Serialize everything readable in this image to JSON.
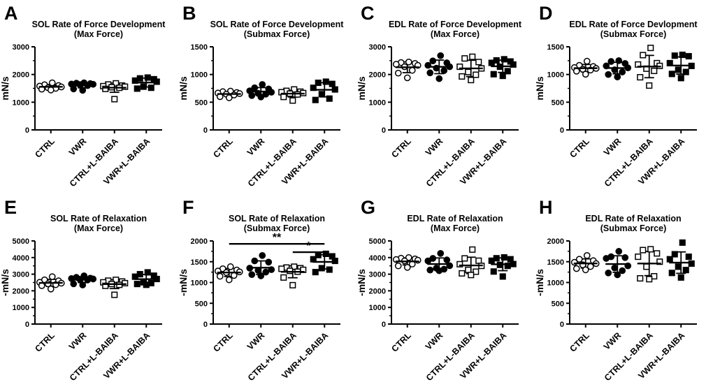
{
  "figure": {
    "background": "#ffffff",
    "foreground": "#000000",
    "categories": [
      "CTRL",
      "VWR",
      "CTRL+L-BAIBA",
      "VWR+L-BAIBA"
    ],
    "marker_key": {
      "CTRL": "circle-open",
      "VWR": "circle-filled",
      "CTRL+L-BAIBA": "square-open",
      "VWR+L-BAIBA": "square-filled"
    }
  },
  "chart_data": [
    {
      "type": "scatter",
      "panel": "A",
      "title": "SOL Rate of Force Development",
      "subtitle": "(Max Force)",
      "ylabel": "mN/s",
      "ylim": [
        0,
        3000
      ],
      "yticks": [
        0,
        1000,
        2000,
        3000
      ],
      "categories": [
        "CTRL",
        "VWR",
        "CTRL+L-BAIBA",
        "VWR+L-BAIBA"
      ],
      "error": "mean_sd",
      "grid": false,
      "legend": "none",
      "series": [
        {
          "name": "CTRL",
          "marker": "circle-open",
          "values": [
            1700,
            1630,
            1600,
            1580,
            1550,
            1520,
            1500,
            1470,
            1440
          ]
        },
        {
          "name": "VWR",
          "marker": "circle-filled",
          "values": [
            1700,
            1685,
            1670,
            1655,
            1645,
            1635,
            1600,
            1480,
            1430
          ]
        },
        {
          "name": "CTRL+L-BAIBA",
          "marker": "square-open",
          "values": [
            1680,
            1640,
            1600,
            1580,
            1560,
            1540,
            1520,
            1480,
            1110
          ]
        },
        {
          "name": "VWR+L-BAIBA",
          "marker": "square-filled",
          "values": [
            1890,
            1860,
            1830,
            1780,
            1740,
            1560,
            1520,
            1490
          ]
        }
      ],
      "significance": []
    },
    {
      "type": "scatter",
      "panel": "B",
      "title": "SOL Rate of Force Development",
      "subtitle": "(Submax Force)",
      "ylabel": "mN/s",
      "ylim": [
        0,
        1500
      ],
      "yticks": [
        0,
        500,
        1000,
        1500
      ],
      "categories": [
        "CTRL",
        "VWR",
        "CTRL+L-BAIBA",
        "VWR+L-BAIBA"
      ],
      "error": "mean_sd",
      "grid": false,
      "legend": "none",
      "series": [
        {
          "name": "CTRL",
          "marker": "circle-open",
          "values": [
            700,
            690,
            675,
            665,
            655,
            645,
            630,
            600,
            580
          ]
        },
        {
          "name": "VWR",
          "marker": "circle-filled",
          "values": [
            820,
            760,
            740,
            705,
            680,
            660,
            645,
            620,
            595
          ]
        },
        {
          "name": "CTRL+L-BAIBA",
          "marker": "square-open",
          "values": [
            730,
            705,
            690,
            680,
            665,
            655,
            640,
            595,
            530
          ]
        },
        {
          "name": "VWR+L-BAIBA",
          "marker": "square-filled",
          "values": [
            870,
            850,
            830,
            760,
            730,
            645,
            565,
            540
          ]
        }
      ],
      "significance": []
    },
    {
      "type": "scatter",
      "panel": "C",
      "title": "EDL Rate of Force Development",
      "subtitle": "(Max Force)",
      "ylabel": "mN/s",
      "ylim": [
        0,
        3000
      ],
      "yticks": [
        0,
        1000,
        2000,
        3000
      ],
      "categories": [
        "CTRL",
        "VWR",
        "CTRL+L-BAIBA",
        "VWR+L-BAIBA"
      ],
      "error": "mean_sd",
      "grid": false,
      "legend": "none",
      "series": [
        {
          "name": "CTRL",
          "marker": "circle-open",
          "values": [
            2450,
            2430,
            2400,
            2370,
            2330,
            2280,
            2150,
            2050,
            1880
          ]
        },
        {
          "name": "VWR",
          "marker": "circle-filled",
          "values": [
            2680,
            2490,
            2420,
            2330,
            2280,
            2230,
            2140,
            2060,
            1850
          ]
        },
        {
          "name": "CTRL+L-BAIBA",
          "marker": "square-open",
          "values": [
            2640,
            2580,
            2450,
            2280,
            2220,
            2090,
            1990,
            1930,
            1800
          ]
        },
        {
          "name": "VWR+L-BAIBA",
          "marker": "square-filled",
          "values": [
            2550,
            2510,
            2470,
            2420,
            2360,
            2280,
            2120,
            2010,
            1950
          ]
        }
      ],
      "significance": []
    },
    {
      "type": "scatter",
      "panel": "D",
      "title": "EDL Rate of Force Devlopment",
      "subtitle": "(Submax Force)",
      "ylabel": "mN/s",
      "ylim": [
        0,
        1500
      ],
      "yticks": [
        0,
        500,
        1000,
        1500
      ],
      "categories": [
        "CTRL",
        "VWR",
        "CTRL+L-BAIBA",
        "VWR+L-BAIBA"
      ],
      "error": "mean_sd",
      "grid": false,
      "legend": "none",
      "series": [
        {
          "name": "CTRL",
          "marker": "circle-open",
          "values": [
            1240,
            1165,
            1145,
            1125,
            1110,
            1095,
            1080,
            1060,
            1005
          ]
        },
        {
          "name": "VWR",
          "marker": "circle-filled",
          "values": [
            1250,
            1235,
            1200,
            1155,
            1120,
            1085,
            1045,
            1000,
            955
          ]
        },
        {
          "name": "CTRL+L-BAIBA",
          "marker": "square-open",
          "values": [
            1480,
            1350,
            1205,
            1180,
            1155,
            1105,
            1065,
            950,
            800
          ]
        },
        {
          "name": "VWR+L-BAIBA",
          "marker": "square-filled",
          "values": [
            1355,
            1340,
            1330,
            1205,
            1155,
            1085,
            1045,
            1010,
            935
          ]
        }
      ],
      "significance": []
    },
    {
      "type": "scatter",
      "panel": "E",
      "title": "SOL Rate of Relaxation",
      "subtitle": "(Max Force)",
      "ylabel": "-mN/s",
      "ylim": [
        0,
        5000
      ],
      "yticks": [
        0,
        1000,
        2000,
        3000,
        4000,
        5000
      ],
      "categories": [
        "CTRL",
        "VWR",
        "CTRL+L-BAIBA",
        "VWR+L-BAIBA"
      ],
      "error": "mean_sd",
      "grid": false,
      "legend": "none",
      "series": [
        {
          "name": "CTRL",
          "marker": "circle-open",
          "values": [
            2850,
            2660,
            2600,
            2510,
            2460,
            2420,
            2370,
            2310,
            2110
          ]
        },
        {
          "name": "VWR",
          "marker": "circle-filled",
          "values": [
            2900,
            2810,
            2760,
            2740,
            2710,
            2690,
            2650,
            2420,
            2350
          ]
        },
        {
          "name": "CTRL+L-BAIBA",
          "marker": "square-open",
          "values": [
            2660,
            2610,
            2560,
            2510,
            2460,
            2410,
            2360,
            2300,
            1760
          ]
        },
        {
          "name": "VWR+L-BAIBA",
          "marker": "square-filled",
          "values": [
            3110,
            3000,
            2910,
            2850,
            2710,
            2510,
            2460,
            2410,
            2360
          ]
        }
      ],
      "significance": []
    },
    {
      "type": "scatter",
      "panel": "F",
      "title": "SOL Rate of Relaxation",
      "subtitle": "(Submax Force)",
      "ylabel": "-mN/s",
      "ylim": [
        0,
        2000
      ],
      "yticks": [
        0,
        500,
        1000,
        1500,
        2000
      ],
      "categories": [
        "CTRL",
        "VWR",
        "CTRL+L-BAIBA",
        "VWR+L-BAIBA"
      ],
      "error": "mean_sd",
      "grid": false,
      "legend": "none",
      "series": [
        {
          "name": "CTRL",
          "marker": "circle-open",
          "values": [
            1380,
            1330,
            1300,
            1275,
            1255,
            1240,
            1170,
            1150,
            1065
          ]
        },
        {
          "name": "VWR",
          "marker": "circle-filled",
          "values": [
            1650,
            1520,
            1490,
            1345,
            1310,
            1290,
            1250,
            1190,
            1160
          ]
        },
        {
          "name": "CTRL+L-BAIBA",
          "marker": "square-open",
          "values": [
            1380,
            1360,
            1345,
            1330,
            1305,
            1280,
            1260,
            1120,
            935
          ]
        },
        {
          "name": "VWR+L-BAIBA",
          "marker": "square-filled",
          "values": [
            1690,
            1660,
            1630,
            1560,
            1520,
            1345,
            1310,
            1250
          ]
        }
      ],
      "significance": [
        {
          "from": 0,
          "to": 3,
          "y": 1930,
          "label": "**"
        },
        {
          "from": 2,
          "to": 3,
          "y": 1730,
          "label": "*"
        }
      ]
    },
    {
      "type": "scatter",
      "panel": "G",
      "title": "EDL Rate of Relaxation",
      "subtitle": "(Max Force)",
      "ylabel": "-mN/s",
      "ylim": [
        0,
        5000
      ],
      "yticks": [
        0,
        1000,
        2000,
        3000,
        4000,
        5000
      ],
      "categories": [
        "CTRL",
        "VWR",
        "CTRL+L-BAIBA",
        "VWR+L-BAIBA"
      ],
      "error": "mean_sd",
      "grid": false,
      "legend": "none",
      "series": [
        {
          "name": "CTRL",
          "marker": "circle-open",
          "values": [
            4000,
            3960,
            3920,
            3880,
            3840,
            3800,
            3610,
            3500,
            3410
          ]
        },
        {
          "name": "VWR",
          "marker": "circle-filled",
          "values": [
            4250,
            3950,
            3860,
            3800,
            3510,
            3360,
            3300,
            3250,
            3210
          ]
        },
        {
          "name": "CTRL+L-BAIBA",
          "marker": "square-open",
          "values": [
            4480,
            3950,
            3810,
            3600,
            3500,
            3260,
            3150,
            3050,
            2950
          ]
        },
        {
          "name": "VWR+L-BAIBA",
          "marker": "square-filled",
          "values": [
            4010,
            3960,
            3900,
            3810,
            3610,
            3560,
            3500,
            3160,
            2860
          ]
        }
      ],
      "significance": []
    },
    {
      "type": "scatter",
      "panel": "H",
      "title": "EDL Rate of Relaxation",
      "subtitle": "(Submax Force)",
      "ylabel": "-mN/s",
      "ylim": [
        0,
        2000
      ],
      "yticks": [
        0,
        500,
        1000,
        1500,
        2000
      ],
      "categories": [
        "CTRL",
        "VWR",
        "CTRL+L-BAIBA",
        "VWR+L-BAIBA"
      ],
      "error": "mean_sd",
      "grid": false,
      "legend": "none",
      "series": [
        {
          "name": "CTRL",
          "marker": "circle-open",
          "values": [
            1650,
            1560,
            1525,
            1485,
            1455,
            1425,
            1385,
            1335,
            1305
          ]
        },
        {
          "name": "VWR",
          "marker": "circle-filled",
          "values": [
            1750,
            1620,
            1600,
            1580,
            1400,
            1350,
            1285,
            1230,
            1185
          ]
        },
        {
          "name": "CTRL+L-BAIBA",
          "marker": "square-open",
          "values": [
            1800,
            1780,
            1700,
            1620,
            1500,
            1380,
            1150,
            1100,
            1080
          ]
        },
        {
          "name": "VWR+L-BAIBA",
          "marker": "square-filled",
          "values": [
            1960,
            1680,
            1620,
            1560,
            1455,
            1380,
            1300,
            1230,
            1120
          ]
        }
      ],
      "significance": []
    }
  ]
}
